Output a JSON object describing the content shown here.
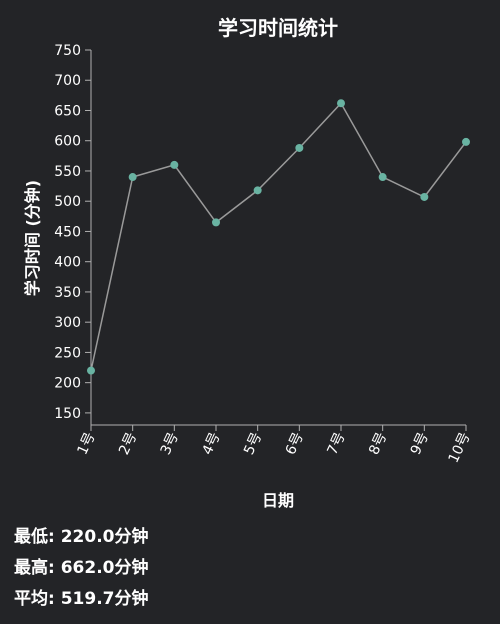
{
  "colors": {
    "background": "#232427",
    "line": "#9a9a9a",
    "point": "#69b3a2",
    "axis": "#b0b0b0",
    "text": "#ffffff"
  },
  "chart_data": {
    "type": "line",
    "title": "学习时间统计",
    "xlabel": "日期",
    "ylabel": "学习时间 (分钟)",
    "categories": [
      "1号",
      "2号",
      "3号",
      "4号",
      "5号",
      "6号",
      "7号",
      "8号",
      "9号",
      "10号"
    ],
    "values": [
      220,
      540,
      560,
      465,
      518,
      588,
      662,
      540,
      507,
      598
    ],
    "yticks": [
      150,
      200,
      250,
      300,
      350,
      400,
      450,
      500,
      550,
      600,
      650,
      700,
      750
    ],
    "ylim": [
      130,
      750
    ],
    "grid": false,
    "legend": "none"
  },
  "stats": {
    "min": "最低: 220.0分钟",
    "max": "最高: 662.0分钟",
    "avg": "平均: 519.7分钟"
  }
}
